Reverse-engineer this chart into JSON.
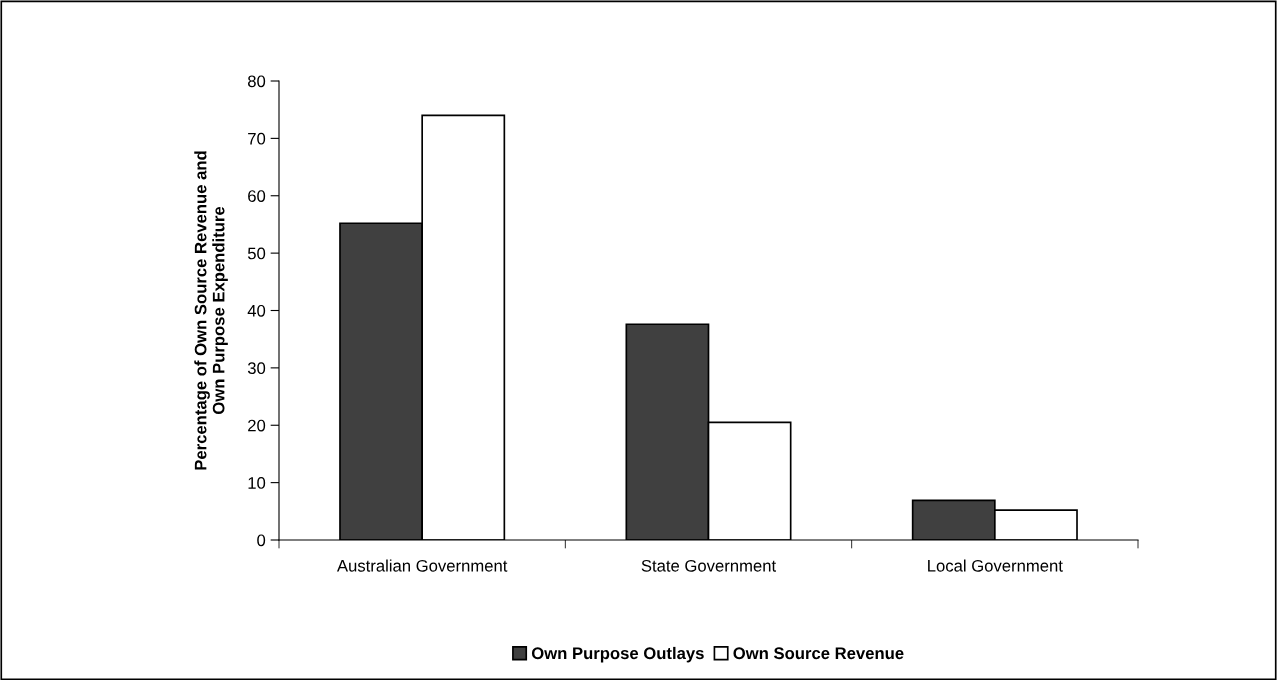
{
  "chart_data": {
    "type": "bar",
    "ylabel": "Percentage of Own Source Revenue and\nOwn Purpose Expenditure",
    "categories": [
      "Australian Government",
      "State Government",
      "Local Government"
    ],
    "series": [
      {
        "name": "Own Purpose Outlays",
        "color": "#404040",
        "values": [
          55.2,
          37.6,
          6.9
        ]
      },
      {
        "name": "Own Source Revenue",
        "color": "#ffffff",
        "values": [
          74.0,
          20.5,
          5.2
        ]
      }
    ],
    "ylim": [
      0,
      80
    ],
    "yticks": [
      0,
      10,
      20,
      30,
      40,
      50,
      60,
      70,
      80
    ],
    "grid": false,
    "legend": "bottom"
  }
}
